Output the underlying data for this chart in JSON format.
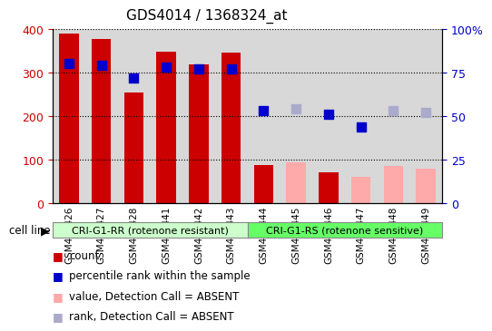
{
  "title": "GDS4014 / 1368324_at",
  "samples": [
    "GSM498426",
    "GSM498427",
    "GSM498428",
    "GSM498441",
    "GSM498442",
    "GSM498443",
    "GSM498444",
    "GSM498445",
    "GSM498446",
    "GSM498447",
    "GSM498448",
    "GSM498449"
  ],
  "counts": [
    390,
    378,
    255,
    348,
    318,
    345,
    88,
    94,
    70,
    60,
    85,
    80
  ],
  "ranks_pct": [
    80,
    79,
    72,
    78,
    77,
    77,
    53,
    54,
    51,
    44,
    53,
    52
  ],
  "count_absent": [
    false,
    false,
    false,
    false,
    false,
    false,
    false,
    true,
    false,
    true,
    true,
    true
  ],
  "rank_absent": [
    false,
    false,
    false,
    false,
    false,
    false,
    false,
    true,
    false,
    false,
    true,
    true
  ],
  "group1_label": "CRI-G1-RR (rotenone resistant)",
  "group2_label": "CRI-G1-RS (rotenone sensitive)",
  "group1_count": 6,
  "group2_count": 6,
  "ylim_left": [
    0,
    400
  ],
  "ylim_right": [
    0,
    100
  ],
  "yticks_left": [
    0,
    100,
    200,
    300,
    400
  ],
  "yticks_right": [
    0,
    25,
    50,
    75,
    100
  ],
  "ytick_labels_right": [
    "0",
    "25",
    "50",
    "75",
    "100%"
  ],
  "color_bar_present": "#cc0000",
  "color_bar_absent": "#ffaaaa",
  "color_dot_present": "#0000cc",
  "color_dot_absent": "#aaaacc",
  "color_group1_bg": "#ccffcc",
  "color_group2_bg": "#66ff66",
  "color_col_bg": "#d8d8d8",
  "color_tick_left": "#cc0000",
  "color_tick_right": "#0000cc",
  "bar_width": 0.6,
  "dot_size": 50,
  "cell_line_label": "cell line",
  "legend_items": [
    {
      "color": "#cc0000",
      "label": "count"
    },
    {
      "color": "#0000cc",
      "label": "percentile rank within the sample"
    },
    {
      "color": "#ffaaaa",
      "label": "value, Detection Call = ABSENT"
    },
    {
      "color": "#aaaacc",
      "label": "rank, Detection Call = ABSENT"
    }
  ]
}
